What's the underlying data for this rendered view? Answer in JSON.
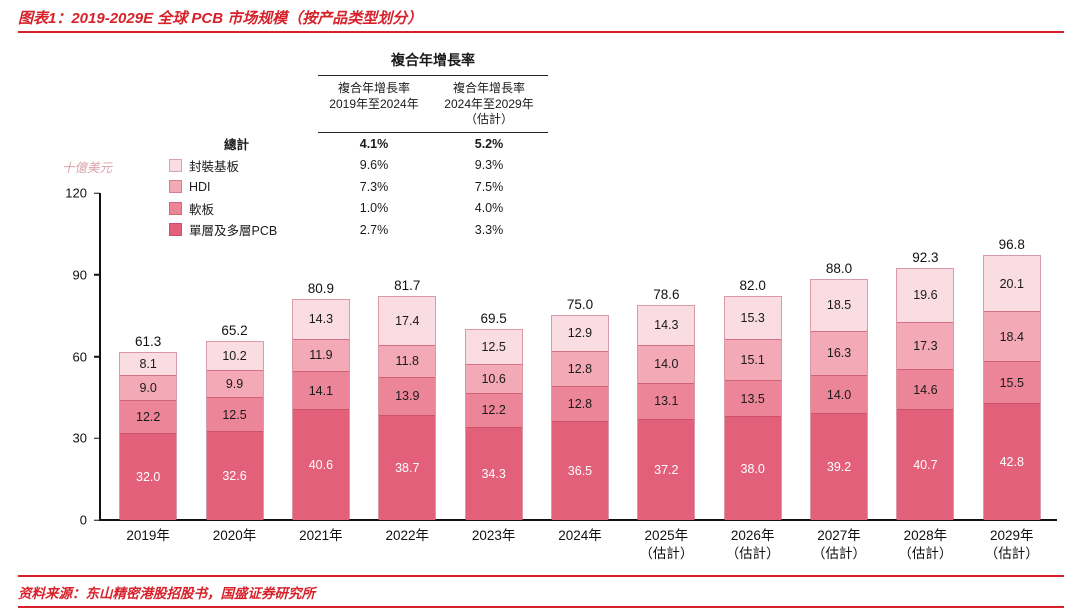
{
  "header": {
    "title": "图表1：2019-2029E 全球 PCB 市场规模（按产品类型划分）"
  },
  "footer": {
    "source": "资料来源：东山精密港股招股书，国盛证券研究所"
  },
  "colors": {
    "accent_red": "#d7222b",
    "bar_single_multi": "#e3607a",
    "bar_flex": "#ec8598",
    "bar_hdi": "#f3a9b6",
    "bar_substrate": "#fadde3"
  },
  "cagr_table": {
    "title": "複合年增長率",
    "col_headers": [
      "複合年增長率\n2019年至2024年",
      "複合年增長率\n2024年至2029年\n（估計）"
    ],
    "rows": [
      {
        "label": "總計",
        "c1": "4.1%",
        "c2": "5.2%"
      },
      {
        "label": "封裝基板",
        "c1": "9.6%",
        "c2": "9.3%"
      },
      {
        "label": "HDI",
        "c1": "7.3%",
        "c2": "7.5%"
      },
      {
        "label": "軟板",
        "c1": "1.0%",
        "c2": "4.0%"
      },
      {
        "label": "單層及多層PCB",
        "c1": "2.7%",
        "c2": "3.3%"
      }
    ]
  },
  "chart_data": {
    "type": "bar",
    "stacked": true,
    "title": "2019-2029E 全球 PCB 市场规模（按产品类型划分）",
    "unit_label": "十億美元",
    "ylabel": "十億美元",
    "xlabel": "",
    "ylim": [
      0,
      120
    ],
    "yticks": [
      0,
      30,
      60,
      90,
      120
    ],
    "grid": false,
    "legend_position": "top-left",
    "categories": [
      "2019年",
      "2020年",
      "2021年",
      "2022年",
      "2023年",
      "2024年",
      "2025年\n（估計）",
      "2026年\n（估計）",
      "2027年\n（估計）",
      "2028年\n（估計）",
      "2029年\n（估計）"
    ],
    "series": [
      {
        "name": "單層及多層PCB",
        "color": "#e3607a",
        "text_color": "#ffffff",
        "values": [
          32.0,
          32.6,
          40.6,
          38.7,
          34.3,
          36.5,
          37.2,
          38.0,
          39.2,
          40.7,
          42.8
        ]
      },
      {
        "name": "軟板",
        "color": "#ec8598",
        "text_color": "#1a1a1a",
        "values": [
          12.2,
          12.5,
          14.1,
          13.9,
          12.2,
          12.8,
          13.1,
          13.5,
          14.0,
          14.6,
          15.5
        ]
      },
      {
        "name": "HDI",
        "color": "#f3a9b6",
        "text_color": "#1a1a1a",
        "values": [
          9.0,
          9.9,
          11.9,
          11.8,
          10.6,
          12.8,
          14.0,
          15.1,
          16.3,
          17.3,
          18.4
        ]
      },
      {
        "name": "封裝基板",
        "color": "#fadde3",
        "text_color": "#1a1a1a",
        "values": [
          8.1,
          10.2,
          14.3,
          17.4,
          12.5,
          12.9,
          14.3,
          15.3,
          18.5,
          19.6,
          20.1
        ]
      }
    ],
    "totals": [
      61.3,
      65.2,
      80.9,
      81.7,
      69.5,
      75.0,
      78.6,
      82.0,
      88.0,
      92.3,
      96.8
    ]
  }
}
